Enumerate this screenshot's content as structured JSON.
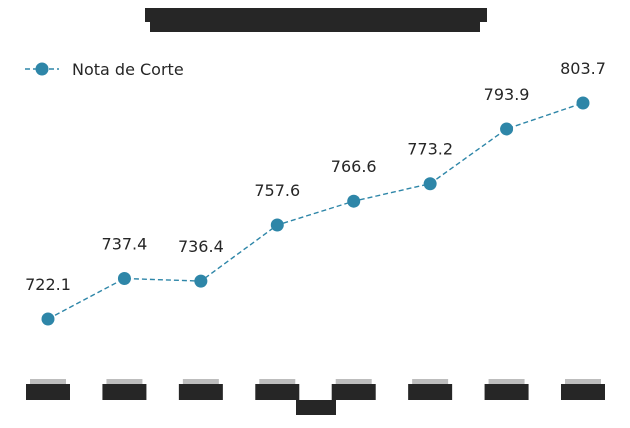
{
  "chart_data": {
    "type": "line",
    "title": "",
    "xlabel": "",
    "ylabel": "",
    "categories": [
      "",
      "",
      "",
      "",
      "",
      "",
      "",
      ""
    ],
    "series": [
      {
        "name": "Nota de Corte",
        "values": [
          722.1,
          737.4,
          736.4,
          757.6,
          766.6,
          773.2,
          793.9,
          803.7
        ],
        "color": "#2e86a8",
        "marker": "circle",
        "linestyle": "dashed"
      }
    ],
    "data_labels": [
      "722.1",
      "737.4",
      "736.4",
      "757.6",
      "766.6",
      "773.2",
      "793.9",
      "803.7"
    ],
    "ylim": [
      705,
      815
    ],
    "grid": false,
    "legend_position": "top-left",
    "title_redacted": true,
    "xlabel_redacted": true,
    "tick_labels_redacted": true
  }
}
